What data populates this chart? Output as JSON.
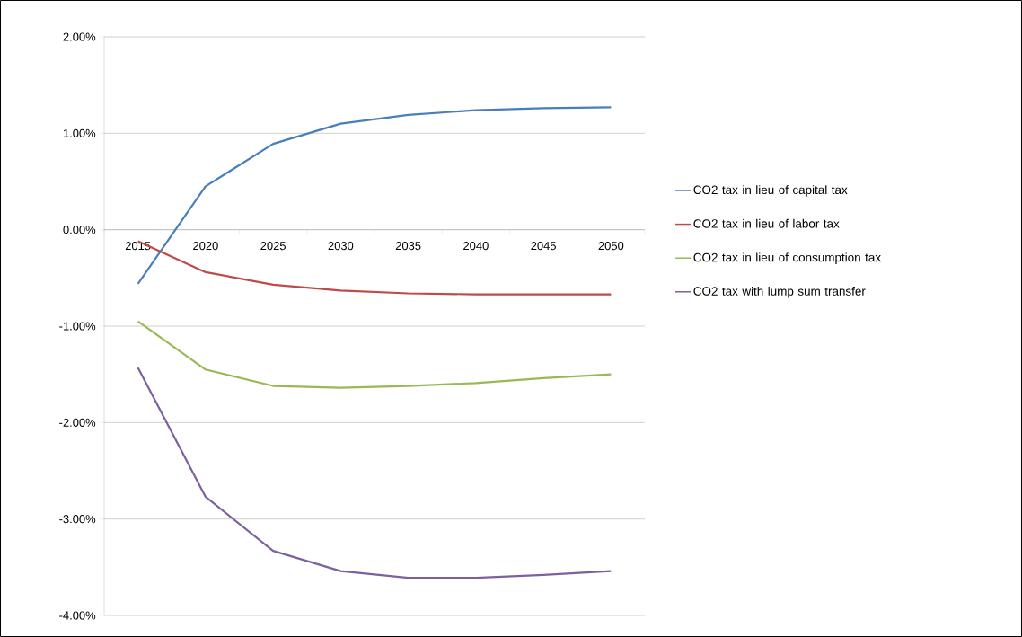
{
  "chart_data": {
    "type": "line",
    "categories": [
      "2015",
      "2020",
      "2025",
      "2030",
      "2035",
      "2040",
      "2045",
      "2050"
    ],
    "series": [
      {
        "name": "CO2 tax in lieu of capital tax",
        "color": "#4a7ebb",
        "values": [
          -0.56,
          0.45,
          0.89,
          1.1,
          1.19,
          1.24,
          1.26,
          1.27
        ]
      },
      {
        "name": "CO2 tax in lieu of labor tax",
        "color": "#be4b48",
        "values": [
          -0.12,
          -0.44,
          -0.57,
          -0.63,
          -0.66,
          -0.67,
          -0.67,
          -0.67
        ]
      },
      {
        "name": "CO2 tax in lieu of consumption tax",
        "color": "#98b954",
        "values": [
          -0.95,
          -1.45,
          -1.62,
          -1.64,
          -1.62,
          -1.59,
          -1.54,
          -1.5
        ]
      },
      {
        "name": "CO2 tax with lump sum transfer",
        "color": "#7d60a0",
        "values": [
          -1.43,
          -2.77,
          -3.33,
          -3.54,
          -3.61,
          -3.61,
          -3.58,
          -3.54
        ]
      }
    ],
    "ylim": [
      -4,
      2
    ],
    "yticks": [
      {
        "value": -4,
        "label": "-4.00%"
      },
      {
        "value": -3,
        "label": "-3.00%"
      },
      {
        "value": -2,
        "label": "-2.00%"
      },
      {
        "value": -1,
        "label": "-1.00%"
      },
      {
        "value": 0,
        "label": "0.00%"
      },
      {
        "value": 1,
        "label": "1.00%"
      },
      {
        "value": 2,
        "label": "2.00%"
      }
    ],
    "grid": "y",
    "legend": "right",
    "marker": "none",
    "line_style": "solid"
  }
}
